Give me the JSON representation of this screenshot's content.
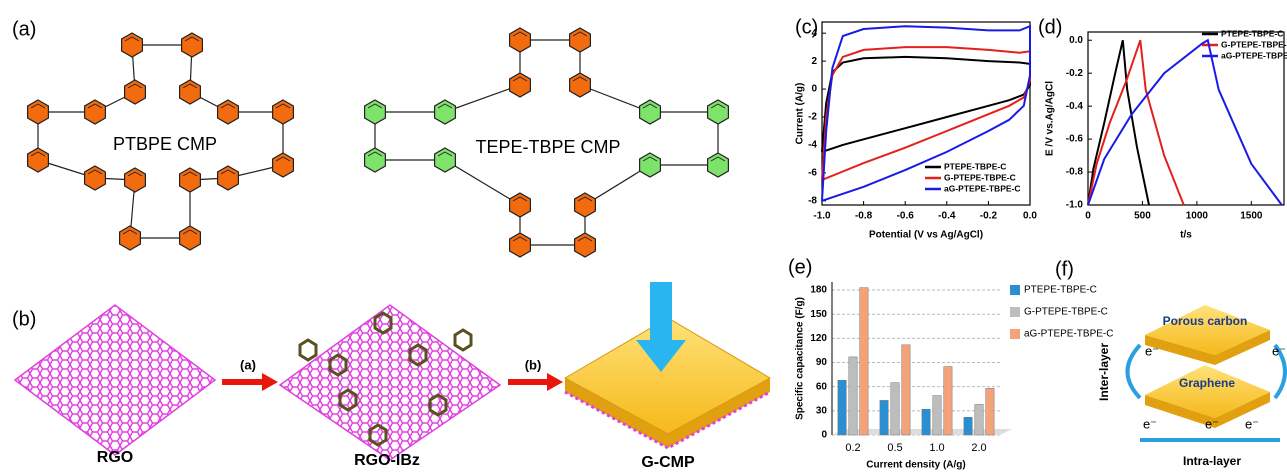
{
  "panel_a": {
    "label": "(a)",
    "structures": [
      "PTBPE CMP",
      "TEPE-TBPE CMP"
    ]
  },
  "panel_b": {
    "label": "(b)",
    "steps": [
      "(a)",
      "(b)"
    ],
    "materials": [
      "RGO",
      "RGO-IBz",
      "G-CMP"
    ]
  },
  "panel_f": {
    "label": "(f)",
    "layers": [
      "Porous carbon",
      "Graphene"
    ],
    "directions": [
      "Inter-layer",
      "Intra-layer"
    ],
    "electrons": [
      "e⁻",
      "e⁻",
      "e⁻",
      "e⁻",
      "e⁻"
    ]
  },
  "chart_data": [
    {
      "type": "line",
      "panel_label": "(c)",
      "xlabel": "Potential (V vs Ag/AgCl)",
      "ylabel": "Current (A/g)",
      "legend": "lower right",
      "x": [
        -1.0,
        -0.98,
        -0.95,
        -0.9,
        -0.8,
        -0.6,
        -0.4,
        -0.2,
        -0.05,
        0.0,
        0.0,
        -0.03,
        -0.1,
        -0.2,
        -0.4,
        -0.6,
        -0.8,
        -0.9,
        -1.0
      ],
      "series": [
        {
          "name": "PTEPE-TBPE-C",
          "color": "#000000",
          "values": [
            -4.5,
            -1.0,
            1.2,
            1.9,
            2.2,
            2.3,
            2.2,
            2.0,
            1.9,
            1.8,
            0.3,
            -0.4,
            -0.8,
            -1.2,
            -2.0,
            -2.8,
            -3.6,
            -4.0,
            -4.5
          ]
        },
        {
          "name": "G-PTEPE-TBPE-C",
          "color": "#e3201b",
          "values": [
            -6.5,
            -2.0,
            1.0,
            2.3,
            2.8,
            3.0,
            3.0,
            2.8,
            2.6,
            2.7,
            0.6,
            -0.6,
            -1.2,
            -1.8,
            -3.0,
            -4.2,
            -5.3,
            -5.9,
            -6.5
          ]
        },
        {
          "name": "aG-PTEPE-TBPE-C",
          "color": "#1a1ae6",
          "values": [
            -8.0,
            -3.0,
            1.5,
            3.8,
            4.3,
            4.5,
            4.4,
            4.2,
            4.2,
            4.5,
            1.0,
            -1.2,
            -2.2,
            -3.0,
            -4.5,
            -5.8,
            -7.0,
            -7.5,
            -8.0
          ]
        }
      ],
      "xlim": [
        -1.0,
        0.0
      ],
      "xticks": [
        {
          "value": -1.0,
          "label": "-1.0"
        },
        -0.8,
        -0.6,
        -0.4,
        -0.2,
        {
          "value": 0.0,
          "label": "0.0"
        }
      ],
      "ylim": [
        -8.3,
        4.8
      ],
      "yticks": [
        -8,
        -6,
        -4,
        -2,
        0,
        2,
        4
      ]
    },
    {
      "type": "line",
      "panel_label": "(d)",
      "xlabel": "t/s",
      "ylabel": "E /V vs.Ag/AgCl",
      "legend": "upper right",
      "series": [
        {
          "name": "PTEPE-TBPE-C",
          "color": "#000000",
          "x": [
            0,
            50,
            150,
            250,
            320,
            360,
            450,
            560
          ],
          "values": [
            -1.0,
            -0.78,
            -0.5,
            -0.2,
            0.0,
            -0.3,
            -0.65,
            -1.0
          ]
        },
        {
          "name": "G-PTEPE-TBPE-C",
          "color": "#e3201b",
          "x": [
            0,
            80,
            200,
            350,
            480,
            530,
            700,
            880
          ],
          "values": [
            -1.0,
            -0.75,
            -0.5,
            -0.25,
            0.0,
            -0.3,
            -0.7,
            -1.0
          ]
        },
        {
          "name": "aG-PTEPE-TBPE-C",
          "color": "#1a1ae6",
          "x": [
            0,
            150,
            400,
            700,
            1050,
            1100,
            1200,
            1500,
            1780
          ],
          "values": [
            -1.0,
            -0.72,
            -0.45,
            -0.2,
            -0.02,
            0.0,
            -0.3,
            -0.75,
            -1.0
          ]
        }
      ],
      "xlim": [
        0,
        1800
      ],
      "xticks": [
        0,
        500,
        1000,
        1500
      ],
      "ylim": [
        -1.0,
        0.05
      ],
      "yticks": [
        {
          "value": -1.0,
          "label": "-1.0"
        },
        -0.8,
        -0.6,
        -0.4,
        -0.2,
        {
          "value": 0.0,
          "label": "0.0"
        }
      ]
    },
    {
      "type": "bar",
      "panel_label": "(e)",
      "xlabel": "Current density (A/g)",
      "ylabel": "Specific capacitance (F/g)",
      "legend": "right",
      "grid": true,
      "categories": [
        "0.2",
        "0.5",
        "1.0",
        "2.0"
      ],
      "series": [
        {
          "name": "PTEPE-TBPE-C",
          "color": "#2a8fd0",
          "values": [
            68,
            43,
            32,
            22
          ]
        },
        {
          "name": "G-PTEPE-TBPE-C",
          "color": "#bdbdbd",
          "values": [
            97,
            65,
            49,
            38
          ]
        },
        {
          "name": "aG-PTEPE-TBPE-C",
          "color": "#f4a27a",
          "values": [
            183,
            112,
            85,
            58
          ]
        }
      ],
      "ylim": [
        0,
        190
      ],
      "yticks": [
        0,
        30,
        60,
        90,
        120,
        150,
        180
      ]
    }
  ]
}
